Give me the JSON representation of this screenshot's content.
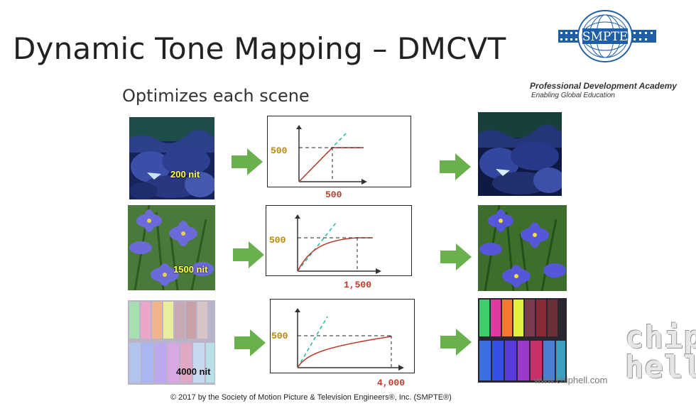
{
  "slide": {
    "title": "Dynamic Tone Mapping – DMCVT",
    "subtitle": "Optimizes each scene",
    "copyright": "© 2017 by the Society of Motion Picture & Television Engineers®, Inc. (SMPTE®)"
  },
  "logo": {
    "text": "SMPTE",
    "academy": "Professional Development Academy",
    "tagline": "Enabling Global Education"
  },
  "rows": [
    {
      "input_label": "200 nit",
      "y_label": "500",
      "x_label": "500"
    },
    {
      "input_label": "1500 nit",
      "y_label": "500",
      "x_label": "1,500"
    },
    {
      "input_label": "4000 nit",
      "y_label": "500",
      "x_label": "4,000"
    }
  ],
  "watermark": {
    "url": "www.chiphell.com",
    "brand_top": "chip",
    "brand_bottom": "hell"
  },
  "colors": {
    "arrow": "#6ab04c",
    "curve": "#c0392b",
    "linear": "#1abc9c",
    "axis_value": "#b8860b"
  }
}
